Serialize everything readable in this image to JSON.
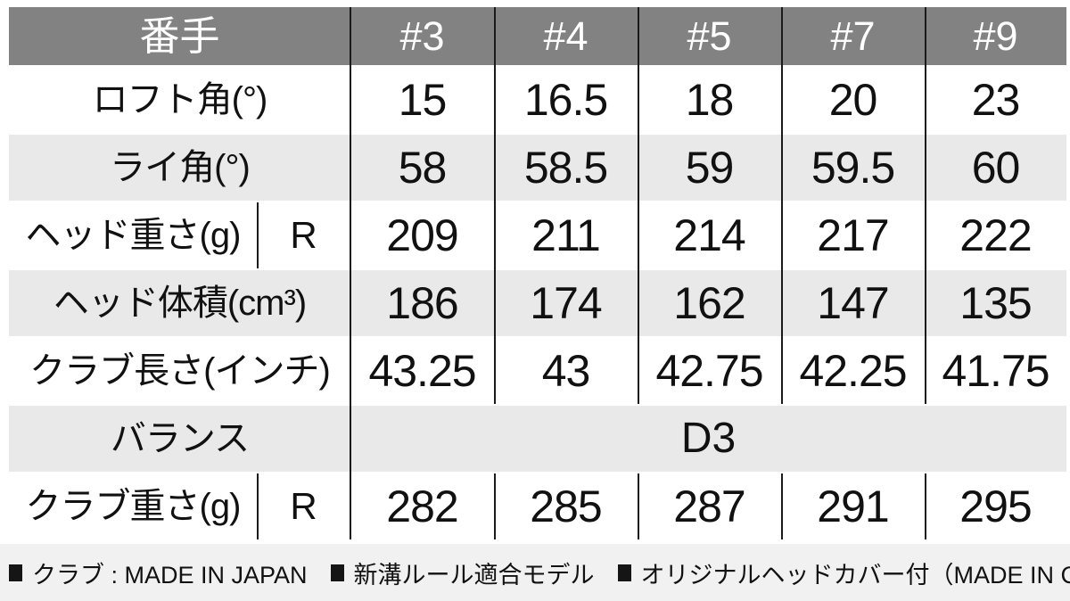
{
  "table": {
    "corner_label": "番手",
    "clubs": [
      "#3",
      "#4",
      "#5",
      "#7",
      "#9"
    ],
    "rows": [
      {
        "label": "ロフト角(°)",
        "values": [
          "15",
          "16.5",
          "18",
          "20",
          "23"
        ]
      },
      {
        "label": "ライ角(°)",
        "values": [
          "58",
          "58.5",
          "59",
          "59.5",
          "60"
        ]
      },
      {
        "label": "ヘッド重さ(g)",
        "flex": "R",
        "values": [
          "209",
          "211",
          "214",
          "217",
          "222"
        ]
      },
      {
        "label": "ヘッド体積(cm³)",
        "values": [
          "186",
          "174",
          "162",
          "147",
          "135"
        ]
      },
      {
        "label": "クラブ長さ(インチ)",
        "values": [
          "43.25",
          "43",
          "42.75",
          "42.25",
          "41.75"
        ]
      },
      {
        "label": "バランス",
        "merged_value": "D3"
      },
      {
        "label": "クラブ重さ(g)",
        "flex": "R",
        "values": [
          "282",
          "285",
          "287",
          "291",
          "295"
        ]
      }
    ]
  },
  "footer": {
    "notes": [
      "クラブ : MADE IN JAPAN",
      "新溝ルール適合モデル",
      "オリジナルヘッドカバー付（MADE IN CHINA）"
    ]
  },
  "colors": {
    "header_bg": "#828282",
    "header_text": "#ffffff",
    "shaded_row_bg": "#e9e9e9",
    "footer_bg": "#f1f1f1",
    "divider": "#1a1a1a",
    "text": "#111111"
  }
}
